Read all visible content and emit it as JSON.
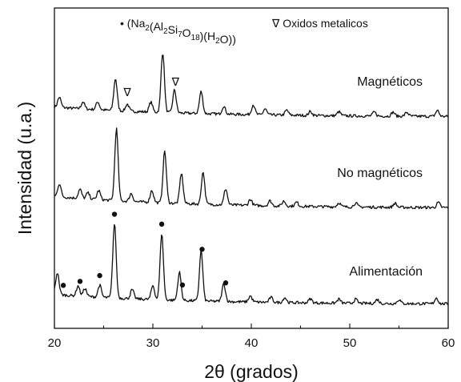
{
  "chart_data": {
    "type": "line",
    "xlabel": "2θ (grados)",
    "ylabel": "Intensidad (u.a.)",
    "xlim": [
      20,
      60
    ],
    "xticks": [
      "20",
      "30",
      "40",
      "50",
      "60"
    ],
    "yticks_shown": false,
    "grid": false,
    "legend": {
      "placement": "top",
      "entries": [
        {
          "marker": "•",
          "formula_parts": [
            {
              "t": "(Na"
            },
            {
              "t": "2",
              "sub": true
            },
            {
              "t": "(Al"
            },
            {
              "t": "2",
              "sub": true
            },
            {
              "t": "Si"
            },
            {
              "t": "7",
              "sub": true
            },
            {
              "t": "O"
            },
            {
              "t": "18",
              "sub": true
            },
            {
              "t": ")(H"
            },
            {
              "t": "2",
              "sub": true
            },
            {
              "t": "O))"
            }
          ]
        },
        {
          "marker": "∇",
          "label": "Oxidos metalicos"
        }
      ]
    },
    "series": [
      {
        "name": "Magnéticos",
        "offset": 2.0,
        "baseline": 0.1,
        "peaks": [
          [
            20.5,
            0.1
          ],
          [
            22.9,
            0.07
          ],
          [
            24.4,
            0.08
          ],
          [
            26.2,
            0.32
          ],
          [
            27.4,
            0.07
          ],
          [
            29.8,
            0.1
          ],
          [
            31.0,
            0.6
          ],
          [
            32.2,
            0.23
          ],
          [
            34.9,
            0.22
          ],
          [
            37.2,
            0.08
          ],
          [
            40.2,
            0.1
          ],
          [
            41.4,
            0.06
          ],
          [
            43.6,
            0.05
          ],
          [
            46.0,
            0.04
          ],
          [
            48.9,
            0.04
          ],
          [
            52.5,
            0.04
          ],
          [
            54.4,
            0.04
          ],
          [
            55.8,
            0.04
          ],
          [
            58.9,
            0.06
          ]
        ],
        "markers": [
          {
            "x": 27.4,
            "symbol": "∇"
          },
          {
            "x": 32.3,
            "symbol": "∇"
          }
        ]
      },
      {
        "name": "No magnéticos",
        "offset": 1.0,
        "baseline": 0.12,
        "peaks": [
          [
            20.5,
            0.13
          ],
          [
            22.6,
            0.09
          ],
          [
            23.4,
            0.06
          ],
          [
            24.5,
            0.09
          ],
          [
            26.3,
            0.72
          ],
          [
            27.8,
            0.08
          ],
          [
            29.9,
            0.12
          ],
          [
            31.2,
            0.52
          ],
          [
            32.9,
            0.3
          ],
          [
            35.1,
            0.32
          ],
          [
            37.4,
            0.16
          ],
          [
            39.9,
            0.06
          ],
          [
            41.9,
            0.05
          ],
          [
            43.3,
            0.05
          ],
          [
            44.6,
            0.04
          ],
          [
            48.9,
            0.04
          ],
          [
            50.6,
            0.04
          ],
          [
            54.6,
            0.04
          ],
          [
            59.0,
            0.05
          ]
        ],
        "markers": []
      },
      {
        "name": "Alimentación",
        "offset": 0.0,
        "baseline": 0.1,
        "peaks": [
          [
            20.3,
            0.22
          ],
          [
            22.4,
            0.1
          ],
          [
            23.1,
            0.08
          ],
          [
            24.6,
            0.12
          ],
          [
            26.1,
            0.74
          ],
          [
            27.9,
            0.09
          ],
          [
            30.0,
            0.14
          ],
          [
            30.9,
            0.66
          ],
          [
            32.7,
            0.28
          ],
          [
            34.9,
            0.5
          ],
          [
            37.2,
            0.18
          ],
          [
            39.9,
            0.06
          ],
          [
            42.0,
            0.05
          ],
          [
            43.4,
            0.05
          ],
          [
            46.0,
            0.04
          ],
          [
            48.9,
            0.04
          ],
          [
            50.6,
            0.04
          ],
          [
            52.8,
            0.04
          ],
          [
            55.0,
            0.04
          ],
          [
            58.8,
            0.06
          ]
        ],
        "markers": [
          {
            "x": 20.9,
            "symbol": "•"
          },
          {
            "x": 22.6,
            "symbol": "•"
          },
          {
            "x": 24.6,
            "symbol": "•"
          },
          {
            "x": 26.1,
            "symbol": "•"
          },
          {
            "x": 30.9,
            "symbol": "•"
          },
          {
            "x": 33.0,
            "symbol": "•"
          },
          {
            "x": 35.0,
            "symbol": "•"
          },
          {
            "x": 37.4,
            "symbol": "•"
          }
        ]
      }
    ]
  }
}
